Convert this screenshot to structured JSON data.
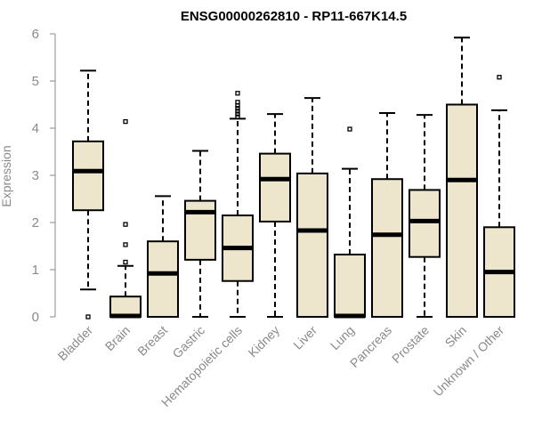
{
  "chart_data": {
    "type": "boxplot",
    "title": "ENSG00000262810 - RP11-667K14.5",
    "xlabel": "",
    "ylabel": "Expression",
    "ylim": [
      0,
      6
    ],
    "yticks": [
      0,
      1,
      2,
      3,
      4,
      5,
      6
    ],
    "categories": [
      "Bladder",
      "Brain",
      "Breast",
      "Gastric",
      "Hematopoietic cells",
      "Kidney",
      "Liver",
      "Lung",
      "Pancreas",
      "Prostate",
      "Skin",
      "Unknown / Other"
    ],
    "boxes": [
      {
        "whisker_low": 0.58,
        "q1": 2.26,
        "median": 3.09,
        "q3": 3.72,
        "whisker_high": 5.22,
        "outliers": [
          0.0
        ]
      },
      {
        "whisker_low": 0.0,
        "q1": 0.0,
        "median": 0.02,
        "q3": 0.43,
        "whisker_high": 1.08,
        "outliers": [
          1.16,
          1.53,
          1.96,
          4.14
        ]
      },
      {
        "whisker_low": 0.0,
        "q1": 0.0,
        "median": 0.92,
        "q3": 1.6,
        "whisker_high": 2.56,
        "outliers": []
      },
      {
        "whisker_low": 0.0,
        "q1": 1.21,
        "median": 2.22,
        "q3": 2.46,
        "whisker_high": 3.52,
        "outliers": []
      },
      {
        "whisker_low": 0.0,
        "q1": 0.76,
        "median": 1.46,
        "q3": 2.15,
        "whisker_high": 4.2,
        "outliers": [
          4.24,
          4.3,
          4.36,
          4.42,
          4.48,
          4.55,
          4.74
        ]
      },
      {
        "whisker_low": 0.0,
        "q1": 2.02,
        "median": 2.92,
        "q3": 3.46,
        "whisker_high": 4.3,
        "outliers": []
      },
      {
        "whisker_low": 0.0,
        "q1": 0.0,
        "median": 1.83,
        "q3": 3.04,
        "whisker_high": 4.64,
        "outliers": []
      },
      {
        "whisker_low": 0.0,
        "q1": 0.0,
        "median": 0.02,
        "q3": 1.32,
        "whisker_high": 3.14,
        "outliers": [
          3.98
        ]
      },
      {
        "whisker_low": 0.0,
        "q1": 0.0,
        "median": 1.74,
        "q3": 2.92,
        "whisker_high": 4.32,
        "outliers": []
      },
      {
        "whisker_low": 0.0,
        "q1": 1.27,
        "median": 2.03,
        "q3": 2.69,
        "whisker_high": 4.28,
        "outliers": []
      },
      {
        "whisker_low": 0.0,
        "q1": 0.0,
        "median": 2.9,
        "q3": 4.5,
        "whisker_high": 5.92,
        "outliers": []
      },
      {
        "whisker_low": 0.0,
        "q1": 0.0,
        "median": 0.95,
        "q3": 1.9,
        "whisker_high": 4.38,
        "outliers": [
          5.08
        ]
      }
    ],
    "grid": false,
    "legend": "none"
  }
}
